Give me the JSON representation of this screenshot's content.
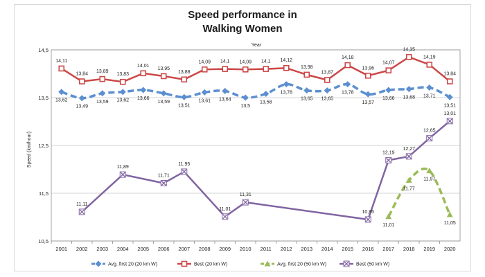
{
  "chart_data": {
    "type": "line",
    "title_lines": [
      "Speed performance in",
      "Walking Women"
    ],
    "xlabel": "Year",
    "ylabel": "Speed (km/hour)",
    "x": [
      2001,
      2002,
      2003,
      2004,
      2005,
      2006,
      2007,
      2008,
      2009,
      2010,
      2011,
      2012,
      2013,
      2014,
      2015,
      2016,
      2017,
      2018,
      2019,
      2020
    ],
    "ylim": [
      10.5,
      14.5
    ],
    "yticks": [
      "10,5",
      "11,5",
      "12,5",
      "13,5",
      "14,5"
    ],
    "ytick_values": [
      10.5,
      11.5,
      12.5,
      13.5,
      14.5
    ],
    "grid": true,
    "legend_position": "bottom",
    "series": [
      {
        "name": "Avg. first 20 (20 km W)",
        "style": "dashed",
        "marker": "diamond",
        "color": "#5b8fd0",
        "values": [
          13.62,
          13.49,
          13.59,
          13.62,
          13.66,
          13.59,
          13.51,
          13.61,
          13.64,
          13.5,
          13.58,
          13.78,
          13.65,
          13.65,
          13.78,
          13.57,
          13.66,
          13.68,
          13.71,
          13.51
        ],
        "labels": [
          "13,62",
          "13,49",
          "13,59",
          "13,62",
          "13,66",
          "13,59",
          "13,51",
          "13,61",
          "13,64",
          "13,5",
          "13,58",
          "13,78",
          "13,65",
          "13,65",
          "13,78",
          "13,57",
          "13,66",
          "13,68",
          "13,71",
          "13,51"
        ]
      },
      {
        "name": "Best (20 km W)",
        "style": "solid",
        "marker": "square",
        "color": "#cc4747",
        "values": [
          14.11,
          13.84,
          13.89,
          13.83,
          14.01,
          13.95,
          13.88,
          14.09,
          14.1,
          14.09,
          14.1,
          14.12,
          13.98,
          13.87,
          14.18,
          13.96,
          14.07,
          14.35,
          14.19,
          13.84
        ],
        "labels": [
          "14,11",
          "13,84",
          "13,89",
          "13,83",
          "14,01",
          "13,95",
          "13,88",
          "14,09",
          "14,1",
          "14,09",
          "14,1",
          "14,12",
          "13,98",
          "13,87",
          "14,18",
          "13,96",
          "14,07",
          "14,35",
          "14,19",
          "13,84"
        ]
      },
      {
        "name": "Avg. first 20 (50 km W)",
        "style": "dashed",
        "marker": "triangle",
        "color": "#9bbb59",
        "x": [
          2017,
          2018,
          2019,
          2020
        ],
        "values": [
          11.01,
          11.77,
          11.97,
          11.05
        ],
        "labels": [
          "11,01",
          "11,77",
          "11,97",
          "11,05"
        ]
      },
      {
        "name": "Best (50 km W)",
        "style": "solid",
        "marker": "x",
        "color": "#8064a2",
        "x": [
          2002,
          2004,
          2006,
          2007,
          2009,
          2010,
          2016,
          2017,
          2018,
          2019,
          2020
        ],
        "values": [
          11.11,
          11.89,
          11.71,
          11.95,
          11.01,
          11.31,
          10.95,
          12.19,
          12.27,
          12.65,
          13.01
        ],
        "labels": [
          "11,11",
          "11,89",
          "11,71",
          "11,95",
          "11,01",
          "11,31",
          "10,95",
          "12,19",
          "12,27",
          "12,65",
          "13,01"
        ]
      }
    ]
  }
}
